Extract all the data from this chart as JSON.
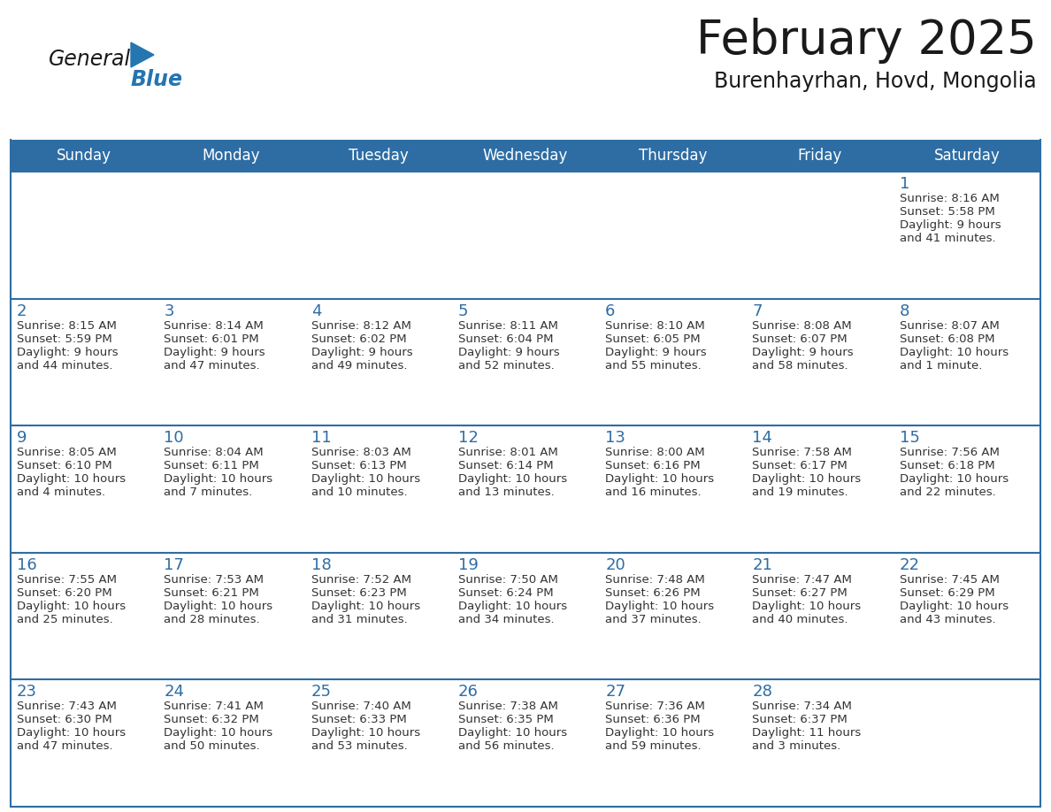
{
  "title": "February 2025",
  "subtitle": "Burenhayrhan, Hovd, Mongolia",
  "header_bg": "#2E6DA4",
  "header_text_color": "#FFFFFF",
  "cell_bg": "#FFFFFF",
  "border_color": "#2E6DA4",
  "text_color": "#333333",
  "day_num_color": "#2E6DA4",
  "day_headers": [
    "Sunday",
    "Monday",
    "Tuesday",
    "Wednesday",
    "Thursday",
    "Friday",
    "Saturday"
  ],
  "days": [
    {
      "day": 1,
      "col": 6,
      "row": 0,
      "sunrise": "8:16 AM",
      "sunset": "5:58 PM",
      "daylight": "9 hours and 41 minutes."
    },
    {
      "day": 2,
      "col": 0,
      "row": 1,
      "sunrise": "8:15 AM",
      "sunset": "5:59 PM",
      "daylight": "9 hours and 44 minutes."
    },
    {
      "day": 3,
      "col": 1,
      "row": 1,
      "sunrise": "8:14 AM",
      "sunset": "6:01 PM",
      "daylight": "9 hours and 47 minutes."
    },
    {
      "day": 4,
      "col": 2,
      "row": 1,
      "sunrise": "8:12 AM",
      "sunset": "6:02 PM",
      "daylight": "9 hours and 49 minutes."
    },
    {
      "day": 5,
      "col": 3,
      "row": 1,
      "sunrise": "8:11 AM",
      "sunset": "6:04 PM",
      "daylight": "9 hours and 52 minutes."
    },
    {
      "day": 6,
      "col": 4,
      "row": 1,
      "sunrise": "8:10 AM",
      "sunset": "6:05 PM",
      "daylight": "9 hours and 55 minutes."
    },
    {
      "day": 7,
      "col": 5,
      "row": 1,
      "sunrise": "8:08 AM",
      "sunset": "6:07 PM",
      "daylight": "9 hours and 58 minutes."
    },
    {
      "day": 8,
      "col": 6,
      "row": 1,
      "sunrise": "8:07 AM",
      "sunset": "6:08 PM",
      "daylight": "10 hours and 1 minute."
    },
    {
      "day": 9,
      "col": 0,
      "row": 2,
      "sunrise": "8:05 AM",
      "sunset": "6:10 PM",
      "daylight": "10 hours and 4 minutes."
    },
    {
      "day": 10,
      "col": 1,
      "row": 2,
      "sunrise": "8:04 AM",
      "sunset": "6:11 PM",
      "daylight": "10 hours and 7 minutes."
    },
    {
      "day": 11,
      "col": 2,
      "row": 2,
      "sunrise": "8:03 AM",
      "sunset": "6:13 PM",
      "daylight": "10 hours and 10 minutes."
    },
    {
      "day": 12,
      "col": 3,
      "row": 2,
      "sunrise": "8:01 AM",
      "sunset": "6:14 PM",
      "daylight": "10 hours and 13 minutes."
    },
    {
      "day": 13,
      "col": 4,
      "row": 2,
      "sunrise": "8:00 AM",
      "sunset": "6:16 PM",
      "daylight": "10 hours and 16 minutes."
    },
    {
      "day": 14,
      "col": 5,
      "row": 2,
      "sunrise": "7:58 AM",
      "sunset": "6:17 PM",
      "daylight": "10 hours and 19 minutes."
    },
    {
      "day": 15,
      "col": 6,
      "row": 2,
      "sunrise": "7:56 AM",
      "sunset": "6:18 PM",
      "daylight": "10 hours and 22 minutes."
    },
    {
      "day": 16,
      "col": 0,
      "row": 3,
      "sunrise": "7:55 AM",
      "sunset": "6:20 PM",
      "daylight": "10 hours and 25 minutes."
    },
    {
      "day": 17,
      "col": 1,
      "row": 3,
      "sunrise": "7:53 AM",
      "sunset": "6:21 PM",
      "daylight": "10 hours and 28 minutes."
    },
    {
      "day": 18,
      "col": 2,
      "row": 3,
      "sunrise": "7:52 AM",
      "sunset": "6:23 PM",
      "daylight": "10 hours and 31 minutes."
    },
    {
      "day": 19,
      "col": 3,
      "row": 3,
      "sunrise": "7:50 AM",
      "sunset": "6:24 PM",
      "daylight": "10 hours and 34 minutes."
    },
    {
      "day": 20,
      "col": 4,
      "row": 3,
      "sunrise": "7:48 AM",
      "sunset": "6:26 PM",
      "daylight": "10 hours and 37 minutes."
    },
    {
      "day": 21,
      "col": 5,
      "row": 3,
      "sunrise": "7:47 AM",
      "sunset": "6:27 PM",
      "daylight": "10 hours and 40 minutes."
    },
    {
      "day": 22,
      "col": 6,
      "row": 3,
      "sunrise": "7:45 AM",
      "sunset": "6:29 PM",
      "daylight": "10 hours and 43 minutes."
    },
    {
      "day": 23,
      "col": 0,
      "row": 4,
      "sunrise": "7:43 AM",
      "sunset": "6:30 PM",
      "daylight": "10 hours and 47 minutes."
    },
    {
      "day": 24,
      "col": 1,
      "row": 4,
      "sunrise": "7:41 AM",
      "sunset": "6:32 PM",
      "daylight": "10 hours and 50 minutes."
    },
    {
      "day": 25,
      "col": 2,
      "row": 4,
      "sunrise": "7:40 AM",
      "sunset": "6:33 PM",
      "daylight": "10 hours and 53 minutes."
    },
    {
      "day": 26,
      "col": 3,
      "row": 4,
      "sunrise": "7:38 AM",
      "sunset": "6:35 PM",
      "daylight": "10 hours and 56 minutes."
    },
    {
      "day": 27,
      "col": 4,
      "row": 4,
      "sunrise": "7:36 AM",
      "sunset": "6:36 PM",
      "daylight": "10 hours and 59 minutes."
    },
    {
      "day": 28,
      "col": 5,
      "row": 4,
      "sunrise": "7:34 AM",
      "sunset": "6:37 PM",
      "daylight": "11 hours and 3 minutes."
    }
  ],
  "logo_text1": "General",
  "logo_text2": "Blue",
  "logo_color1": "#1a1a1a",
  "logo_color2": "#2475b0",
  "logo_triangle_color": "#2475b0",
  "title_fontsize": 38,
  "subtitle_fontsize": 17,
  "header_fontsize": 12,
  "daynum_fontsize": 13,
  "cell_fontsize": 9.5
}
